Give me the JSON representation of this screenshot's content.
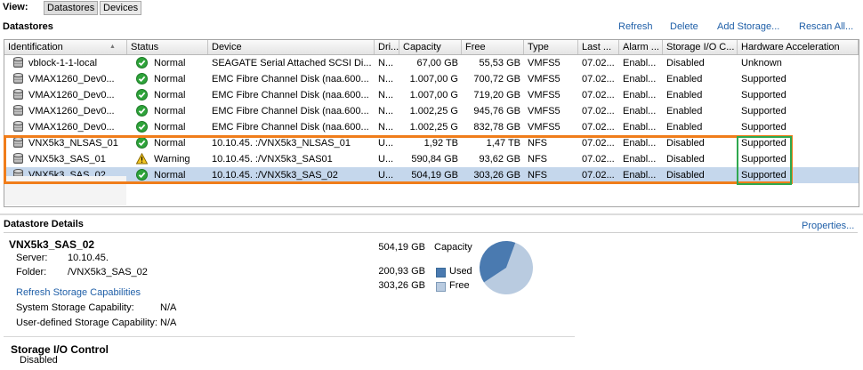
{
  "view": {
    "label": "View:",
    "buttons": [
      "Datastores",
      "Devices"
    ]
  },
  "datastores": {
    "title": "Datastores",
    "actions": [
      "Refresh",
      "Delete",
      "Add Storage...",
      "Rescan All..."
    ]
  },
  "table": {
    "columns": [
      "Identification",
      "Status",
      "Device",
      "Dri...",
      "Capacity",
      "Free",
      "Type",
      "Last ...",
      "Alarm ...",
      "Storage I/O C...",
      "Hardware Acceleration"
    ],
    "sort_indicator": "▲",
    "rows": [
      {
        "id": "vblock-1-1-local",
        "status": "Normal",
        "status_kind": "ok",
        "device": "SEAGATE Serial Attached SCSI Di...",
        "drive": "N...",
        "capacity": "67,00 GB",
        "free": "55,53 GB",
        "type": "VMFS5",
        "last": "07.02...",
        "alarm": "Enabl...",
        "sioc": "Disabled",
        "hwaccel": "Unknown",
        "selected": false
      },
      {
        "id": "VMAX1260_Dev0...",
        "status": "Normal",
        "status_kind": "ok",
        "device": "EMC Fibre Channel Disk (naa.600...",
        "drive": "N...",
        "capacity": "1.007,00 G",
        "free": "700,72 GB",
        "type": "VMFS5",
        "last": "07.02...",
        "alarm": "Enabl...",
        "sioc": "Enabled",
        "hwaccel": "Supported",
        "selected": false
      },
      {
        "id": "VMAX1260_Dev0...",
        "status": "Normal",
        "status_kind": "ok",
        "device": "EMC Fibre Channel Disk (naa.600...",
        "drive": "N...",
        "capacity": "1.007,00 G",
        "free": "719,20 GB",
        "type": "VMFS5",
        "last": "07.02...",
        "alarm": "Enabl...",
        "sioc": "Enabled",
        "hwaccel": "Supported",
        "selected": false
      },
      {
        "id": "VMAX1260_Dev0...",
        "status": "Normal",
        "status_kind": "ok",
        "device": "EMC Fibre Channel Disk (naa.600...",
        "drive": "N...",
        "capacity": "1.002,25 G",
        "free": "945,76 GB",
        "type": "VMFS5",
        "last": "07.02...",
        "alarm": "Enabl...",
        "sioc": "Enabled",
        "hwaccel": "Supported",
        "selected": false
      },
      {
        "id": "VMAX1260_Dev0...",
        "status": "Normal",
        "status_kind": "ok",
        "device": "EMC Fibre Channel Disk (naa.600...",
        "drive": "N...",
        "capacity": "1.002,25 G",
        "free": "832,78 GB",
        "type": "VMFS5",
        "last": "07.02...",
        "alarm": "Enabl...",
        "sioc": "Enabled",
        "hwaccel": "Supported",
        "selected": false
      },
      {
        "id": "VNX5k3_NLSAS_01",
        "status": "Normal",
        "status_kind": "ok",
        "device": "10.10.45.    :/VNX5k3_NLSAS_01",
        "drive": "U...",
        "capacity": "1,92 TB",
        "free": "1,47 TB",
        "type": "NFS",
        "last": "07.02...",
        "alarm": "Enabl...",
        "sioc": "Disabled",
        "hwaccel": "Supported",
        "selected": false
      },
      {
        "id": "VNX5k3_SAS_01",
        "status": "Warning",
        "status_kind": "warn",
        "device": "10.10.45.    :/VNX5k3_SAS01",
        "drive": "U...",
        "capacity": "590,84 GB",
        "free": "93,62 GB",
        "type": "NFS",
        "last": "07.02...",
        "alarm": "Enabl...",
        "sioc": "Disabled",
        "hwaccel": "Supported",
        "selected": false
      },
      {
        "id": "VNX5k3_SAS_02",
        "status": "Normal",
        "status_kind": "ok",
        "device": "10.10.45.    :/VNX5k3_SAS_02",
        "drive": "U...",
        "capacity": "504,19 GB",
        "free": "303,26 GB",
        "type": "NFS",
        "last": "07.02...",
        "alarm": "Enabl...",
        "sioc": "Disabled",
        "hwaccel": "Supported",
        "selected": true
      }
    ]
  },
  "details": {
    "title": "Datastore Details",
    "properties_link": "Properties...",
    "name": "VNX5k3_SAS_02",
    "server_label": "Server:",
    "server_value": "10.10.45.",
    "folder_label": "Folder:",
    "folder_value": "/VNX5k3_SAS_02",
    "refresh_capabilities": "Refresh Storage Capabilities",
    "system_capability_label": "System Storage Capability:",
    "system_capability_value": "N/A",
    "user_capability_label": "User-defined Storage Capability:",
    "user_capability_value": "N/A",
    "capacity_value": "504,19 GB",
    "capacity_label": "Capacity",
    "used_value": "200,93 GB",
    "used_label": "Used",
    "free_value": "303,26 GB",
    "free_label": "Free",
    "usage": {
      "used": 200.93,
      "free": 303.26
    },
    "colors": {
      "used": "#4a7ab0",
      "free": "#b9cbe0"
    },
    "sioc_title": "Storage I/O Control",
    "sioc_value": "Disabled"
  },
  "highlight_colors": {
    "rows_box": "#f07d1a",
    "hwaccel_box": "#2fa84f"
  }
}
